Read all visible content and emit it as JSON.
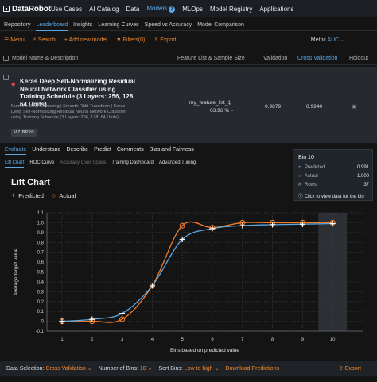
{
  "topnav": {
    "logo": "DataRobot",
    "items": [
      "Use Cases",
      "AI Catalog",
      "Data",
      "Models",
      "MLOps",
      "Model Registry",
      "Applications"
    ],
    "models_badge": "2"
  },
  "subnav": {
    "items": [
      "Repository",
      "Leaderboard",
      "Insights",
      "Learning Curves",
      "Speed vs Accuracy",
      "Model Comparison"
    ]
  },
  "toolbar": {
    "menu": "Menu",
    "search": "Search",
    "add_model": "+ Add new model",
    "filters": "Filters(0)",
    "export": "Export",
    "metric_label": "Metric",
    "metric_value": "AUC"
  },
  "columns": {
    "name": "Model Name & Description",
    "feature_list": "Feature List & Sample Size",
    "validation": "Validation",
    "cross_validation": "Cross Validation",
    "holdout": "Holdout"
  },
  "model": {
    "title": "Keras Deep Self-Normalizing Residual Neural Network Classifier using Training Schedule (3 Layers: 256, 128, 64 Units)",
    "description": "Numeric Data Cleansing | Smooth Ridit Transform | Keras Deep Self-Normalizing Residual Neural Network Classifier using Training Schedule (3 Layers: 256, 128, 64 Units)",
    "tag": "M7  BP20",
    "feature_list": "my_feature_list_1",
    "sample_size": "63.96 %",
    "validation": "0.9879",
    "cross_validation": "0.9940"
  },
  "tabs": [
    "Evaluate",
    "Understand",
    "Describe",
    "Predict",
    "Comments",
    "Bias and Fairness"
  ],
  "subtabs": [
    "Lift Chart",
    "ROC Curve",
    "Accuracy Over Space",
    "Training Dashboard",
    "Advanced Tuning"
  ],
  "tooltip": {
    "title": "Bin 10",
    "predicted_label": "Predicted",
    "predicted_value": "0.991",
    "actual_label": "Actual",
    "actual_value": "1.000",
    "rows_label": "Rows",
    "rows_value": "37",
    "hint": "Click to view data for the bin"
  },
  "chart_title": "Lift Chart",
  "chart_data": {
    "type": "line",
    "x": [
      1,
      2,
      3,
      4,
      5,
      6,
      7,
      8,
      9,
      10
    ],
    "series": [
      {
        "name": "Predicted",
        "values": [
          0.0,
          0.02,
          0.08,
          0.36,
          0.83,
          0.94,
          0.97,
          0.98,
          0.985,
          0.991
        ]
      },
      {
        "name": "Actual",
        "values": [
          0.0,
          0.0,
          0.02,
          0.36,
          0.97,
          0.95,
          1.0,
          1.0,
          1.0,
          1.0
        ]
      }
    ],
    "xlabel": "Bins based on predicted value",
    "ylabel": "Average target value",
    "ylim": [
      -0.1,
      1.1
    ],
    "yticks": [
      "-0.1",
      "0",
      "0.1",
      "0.2",
      "0.3",
      "0.4",
      "0.5",
      "0.6",
      "0.7",
      "0.8",
      "0.9",
      "1.0",
      "1.1"
    ],
    "xticks": [
      "1",
      "2",
      "3",
      "4",
      "5",
      "6",
      "7",
      "8",
      "9",
      "10"
    ],
    "highlight_bin": 10,
    "colors": {
      "predicted": "#5aa7e6",
      "actual": "#f07b2a"
    }
  },
  "footer": {
    "data_selection_label": "Data Selection:",
    "data_selection_value": "Cross Validation",
    "bins_label": "Number of Bins:",
    "bins_value": "10",
    "sort_label": "Sort Bins:",
    "sort_value": "Low to high",
    "download": "Download Predictions",
    "export": "Export"
  }
}
